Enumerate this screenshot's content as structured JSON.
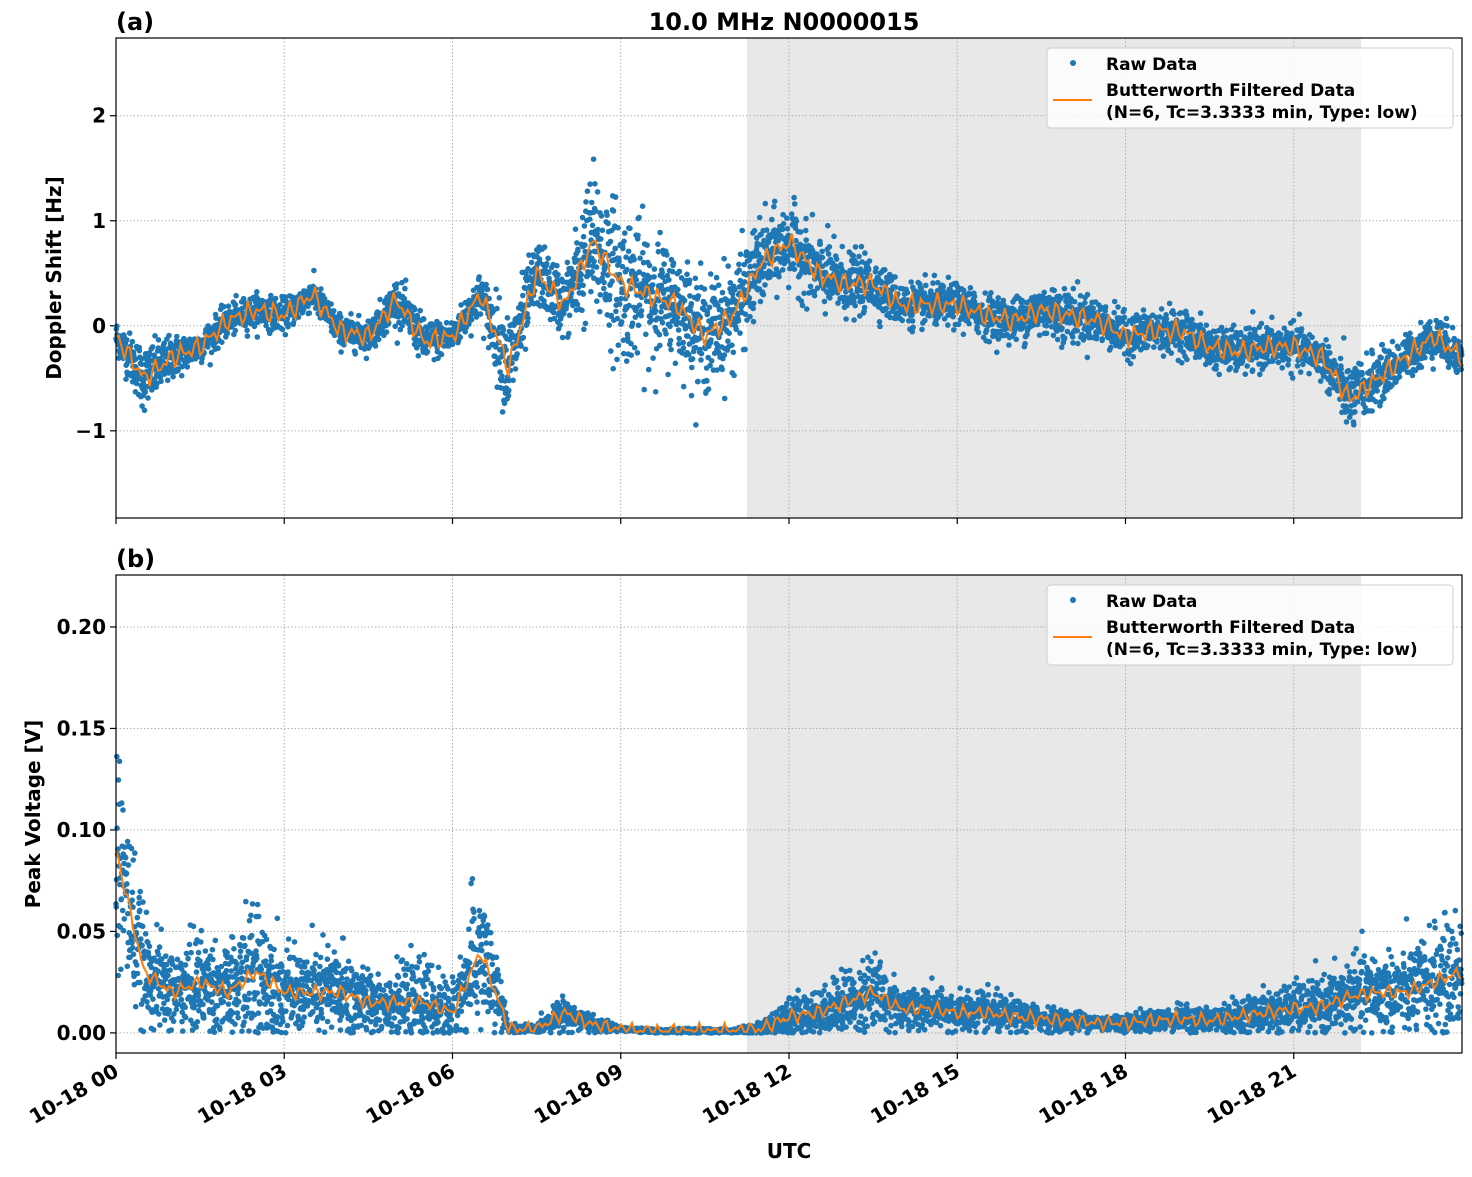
{
  "chart_data": [
    {
      "type": "scatter",
      "panel_label": "(a)",
      "title": "10.0 MHz N0000015",
      "ylabel": "Doppler Shift [Hz]",
      "xlabel": "",
      "xlim_hours_utc": [
        0,
        24
      ],
      "ylim": [
        -1.83,
        2.74
      ],
      "yticks": [
        -1,
        0,
        1,
        2
      ],
      "ytick_labels": [
        "−1",
        "0",
        "1",
        "2"
      ],
      "grid": true,
      "legend_placement": "top-right",
      "shaded_region_hours_utc": [
        11.25,
        22.2
      ],
      "x_hours_utc": [
        0,
        0.5,
        1,
        1.5,
        2,
        2.5,
        3,
        3.5,
        4,
        4.5,
        5,
        5.5,
        6,
        6.5,
        7,
        7.5,
        8,
        8.5,
        9,
        9.5,
        10,
        10.5,
        11,
        11.5,
        12,
        12.5,
        13,
        13.5,
        14,
        14.5,
        15,
        15.5,
        16,
        16.5,
        17,
        17.5,
        18,
        18.5,
        19,
        19.5,
        20,
        20.5,
        21,
        21.5,
        22,
        22.5,
        23,
        23.5,
        24
      ],
      "series": [
        {
          "name": "Butterworth Filtered Data\n(N=6, Tc=3.3333 min, Type: low)",
          "kind": "line",
          "color": "#ff7f0e",
          "values": [
            -0.1,
            -0.5,
            -0.3,
            -0.2,
            0.05,
            0.15,
            0.1,
            0.3,
            -0.05,
            -0.1,
            0.25,
            -0.15,
            -0.1,
            0.3,
            -0.4,
            0.5,
            0.2,
            0.8,
            0.4,
            0.3,
            0.2,
            -0.1,
            0.1,
            0.6,
            0.8,
            0.5,
            0.4,
            0.4,
            0.2,
            0.2,
            0.2,
            0.1,
            0.05,
            0.15,
            0.1,
            0.05,
            -0.1,
            -0.05,
            -0.05,
            -0.2,
            -0.25,
            -0.2,
            -0.2,
            -0.3,
            -0.7,
            -0.5,
            -0.3,
            -0.1,
            -0.3
          ]
        },
        {
          "name": "Raw Data",
          "kind": "scatter",
          "color": "#1f77b4",
          "spread": [
            0.15,
            0.3,
            0.2,
            0.15,
            0.15,
            0.15,
            0.15,
            0.15,
            0.15,
            0.15,
            0.2,
            0.2,
            0.15,
            0.2,
            0.5,
            0.3,
            0.3,
            0.7,
            0.7,
            0.6,
            0.5,
            0.5,
            0.5,
            0.4,
            0.35,
            0.35,
            0.3,
            0.25,
            0.2,
            0.2,
            0.2,
            0.2,
            0.2,
            0.25,
            0.25,
            0.2,
            0.2,
            0.2,
            0.2,
            0.2,
            0.2,
            0.2,
            0.2,
            0.2,
            0.3,
            0.25,
            0.2,
            0.2,
            0.2
          ]
        }
      ]
    },
    {
      "type": "scatter",
      "panel_label": "(b)",
      "ylabel": "Peak Voltage [V]",
      "xlabel": "UTC",
      "xlim_hours_utc": [
        0,
        24
      ],
      "ylim": [
        -0.0099,
        0.2256
      ],
      "yticks": [
        0,
        0.05,
        0.1,
        0.15,
        0.2
      ],
      "ytick_labels": [
        "0.00",
        "0.05",
        "0.10",
        "0.15",
        "0.20"
      ],
      "xticks_hours_utc": [
        0,
        3,
        6,
        9,
        12,
        15,
        18,
        21
      ],
      "xtick_labels": [
        "10-18 00",
        "10-18 03",
        "10-18 06",
        "10-18 09",
        "10-18 12",
        "10-18 15",
        "10-18 18",
        "10-18 21"
      ],
      "grid": true,
      "legend_placement": "top-right",
      "shaded_region_hours_utc": [
        11.25,
        22.2
      ],
      "x_hours_utc": [
        0,
        0.5,
        1,
        1.5,
        2,
        2.5,
        3,
        3.5,
        4,
        4.5,
        5,
        5.5,
        6,
        6.5,
        7,
        7.5,
        8,
        8.5,
        9,
        9.5,
        10,
        10.5,
        11,
        11.5,
        12,
        12.5,
        13,
        13.5,
        14,
        14.5,
        15,
        15.5,
        16,
        16.5,
        17,
        17.5,
        18,
        18.5,
        19,
        19.5,
        20,
        20.5,
        21,
        21.5,
        22,
        22.5,
        23,
        23.5,
        24
      ],
      "series": [
        {
          "name": "Butterworth Filtered Data\n(N=6, Tc=3.3333 min, Type: low)",
          "kind": "line",
          "color": "#ff7f0e",
          "values": [
            0.09,
            0.03,
            0.02,
            0.025,
            0.02,
            0.03,
            0.02,
            0.02,
            0.02,
            0.015,
            0.015,
            0.015,
            0.01,
            0.04,
            0.002,
            0.002,
            0.01,
            0.004,
            0.002,
            0.001,
            0.001,
            0.001,
            0.001,
            0.002,
            0.008,
            0.01,
            0.015,
            0.02,
            0.012,
            0.012,
            0.01,
            0.01,
            0.008,
            0.007,
            0.006,
            0.005,
            0.005,
            0.006,
            0.007,
            0.006,
            0.008,
            0.01,
            0.012,
            0.013,
            0.018,
            0.02,
            0.02,
            0.025,
            0.03
          ]
        },
        {
          "name": "Raw Data",
          "kind": "scatter",
          "color": "#1f77b4",
          "spread": [
            0.06,
            0.025,
            0.02,
            0.025,
            0.02,
            0.04,
            0.02,
            0.02,
            0.025,
            0.015,
            0.015,
            0.02,
            0.015,
            0.04,
            0.002,
            0.002,
            0.008,
            0.004,
            0.001,
            0.001,
            0.001,
            0.001,
            0.001,
            0.003,
            0.01,
            0.01,
            0.015,
            0.02,
            0.01,
            0.01,
            0.01,
            0.01,
            0.008,
            0.006,
            0.005,
            0.004,
            0.004,
            0.005,
            0.006,
            0.006,
            0.008,
            0.01,
            0.012,
            0.013,
            0.018,
            0.02,
            0.02,
            0.025,
            0.03
          ]
        }
      ]
    }
  ],
  "legend": {
    "raw_label": "Raw Data",
    "filtered_line1": "Butterworth Filtered Data",
    "filtered_line2": "(N=6, Tc=3.3333 min, Type: low)"
  }
}
